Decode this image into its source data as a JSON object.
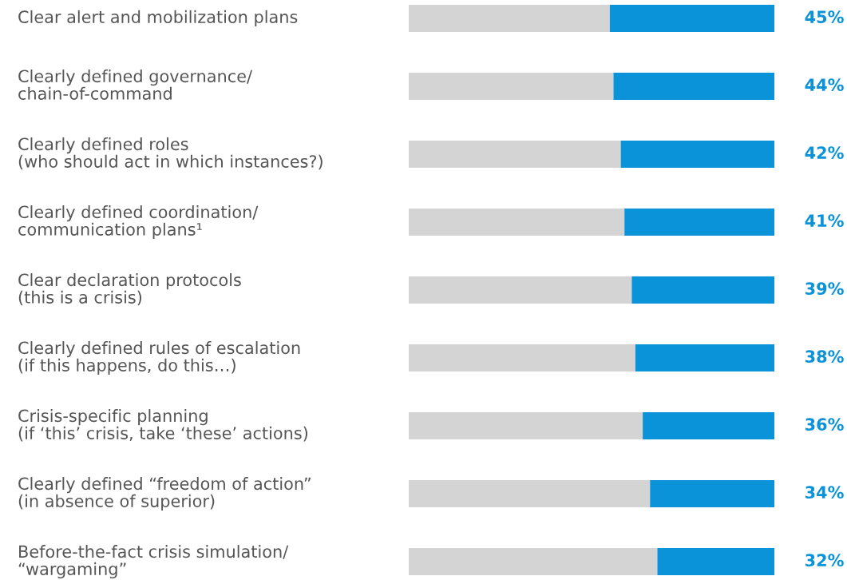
{
  "chart_data": {
    "type": "bar",
    "orientation": "horizontal",
    "stacked": true,
    "categories": [
      "Clear alert and mobilization plans",
      "Clearly defined governance/\nchain-of-command",
      "Clearly defined roles\n(who should act in which instances?)",
      "Clearly defined coordination/\ncommunication plans¹",
      "Clear declaration protocols\n(this is a crisis)",
      "Clearly defined rules of escalation\n(if this happens, do this…)",
      "Crisis-specific planning\n(if ‘this’ crisis, take ‘these’ actions)",
      "Clearly defined “freedom of action”\n(in absence of superior)",
      "Before-the-fact crisis simulation/\n“wargaming”"
    ],
    "series": [
      {
        "color": "#d4d4d4",
        "values": [
          55,
          56,
          58,
          59,
          61,
          62,
          64,
          66,
          68
        ]
      },
      {
        "color": "#0b93d9",
        "values": [
          45,
          44,
          42,
          41,
          39,
          38,
          36,
          34,
          32
        ],
        "value_labels": [
          "45%",
          "44%",
          "42%",
          "41%",
          "39%",
          "38%",
          "36%",
          "34%",
          "32%"
        ]
      }
    ],
    "xlim": [
      0,
      100
    ],
    "tick_labels": "y",
    "legend": false
  }
}
